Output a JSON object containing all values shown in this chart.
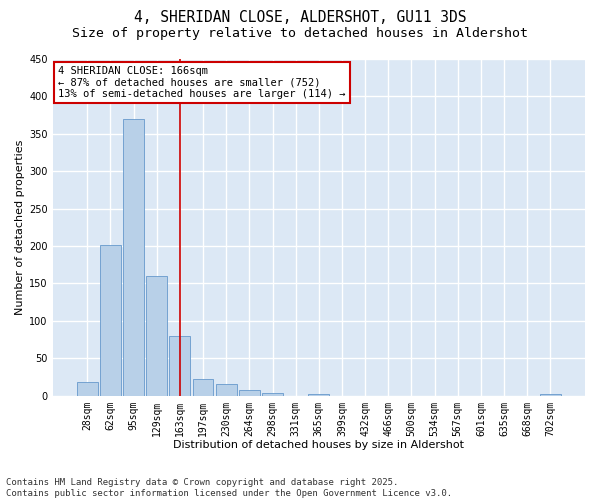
{
  "title": "4, SHERIDAN CLOSE, ALDERSHOT, GU11 3DS",
  "subtitle": "Size of property relative to detached houses in Aldershot",
  "xlabel": "Distribution of detached houses by size in Aldershot",
  "ylabel": "Number of detached properties",
  "categories": [
    "28sqm",
    "62sqm",
    "95sqm",
    "129sqm",
    "163sqm",
    "197sqm",
    "230sqm",
    "264sqm",
    "298sqm",
    "331sqm",
    "365sqm",
    "399sqm",
    "432sqm",
    "466sqm",
    "500sqm",
    "534sqm",
    "567sqm",
    "601sqm",
    "635sqm",
    "668sqm",
    "702sqm"
  ],
  "values": [
    18,
    202,
    370,
    160,
    80,
    22,
    15,
    8,
    4,
    0,
    2,
    0,
    0,
    0,
    0,
    0,
    0,
    0,
    0,
    0,
    2
  ],
  "bar_color": "#b8d0e8",
  "bar_edge_color": "#6699cc",
  "vline_x_index": 4,
  "vline_color": "#cc0000",
  "annotation_text": "4 SHERIDAN CLOSE: 166sqm\n← 87% of detached houses are smaller (752)\n13% of semi-detached houses are larger (114) →",
  "annotation_box_color": "#cc0000",
  "ylim": [
    0,
    450
  ],
  "yticks": [
    0,
    50,
    100,
    150,
    200,
    250,
    300,
    350,
    400,
    450
  ],
  "background_color": "#dce8f5",
  "grid_color": "#ffffff",
  "footer": "Contains HM Land Registry data © Crown copyright and database right 2025.\nContains public sector information licensed under the Open Government Licence v3.0.",
  "title_fontsize": 10.5,
  "subtitle_fontsize": 9.5,
  "xlabel_fontsize": 8,
  "ylabel_fontsize": 8,
  "tick_fontsize": 7,
  "annot_fontsize": 7.5,
  "footer_fontsize": 6.5
}
